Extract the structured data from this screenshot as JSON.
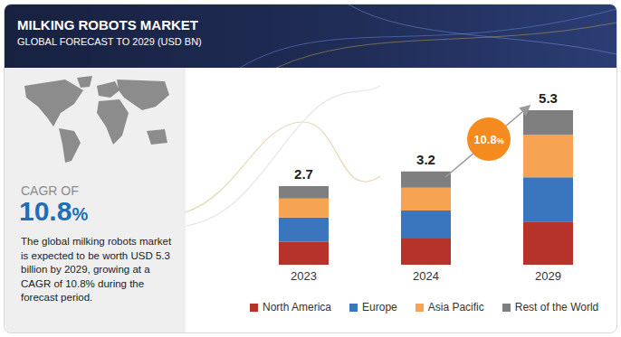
{
  "chart_data": {
    "type": "bar",
    "title": "MILKING ROBOTS MARKET",
    "subtitle": "GLOBAL FORECAST TO 2029 (USD BN)",
    "categories": [
      "2023",
      "2024",
      "2029"
    ],
    "series": [
      {
        "name": "North America",
        "color": "#b5332a",
        "values": [
          0.78,
          0.9,
          1.48
        ]
      },
      {
        "name": "Europe",
        "color": "#3a76bd",
        "values": [
          0.84,
          0.96,
          1.52
        ]
      },
      {
        "name": "Asia Pacific",
        "color": "#f7a354",
        "values": [
          0.65,
          0.78,
          1.46
        ]
      },
      {
        "name": "Rest of the World",
        "color": "#7f7f7f",
        "values": [
          0.43,
          0.56,
          0.84
        ]
      }
    ],
    "totals": [
      2.7,
      3.2,
      5.3
    ],
    "stacked": true,
    "ylim": [
      0,
      5.3
    ],
    "tick_labels": "x",
    "legend": "bottom",
    "annotations": {
      "cagr_label": "CAGR OF",
      "cagr_value": "10.8%",
      "description": "The global milking robots market is expected to be worth USD 5.3 billion by 2029, growing at a CAGR of 10.8% during the forecast period.",
      "callout": "10.8%"
    }
  }
}
